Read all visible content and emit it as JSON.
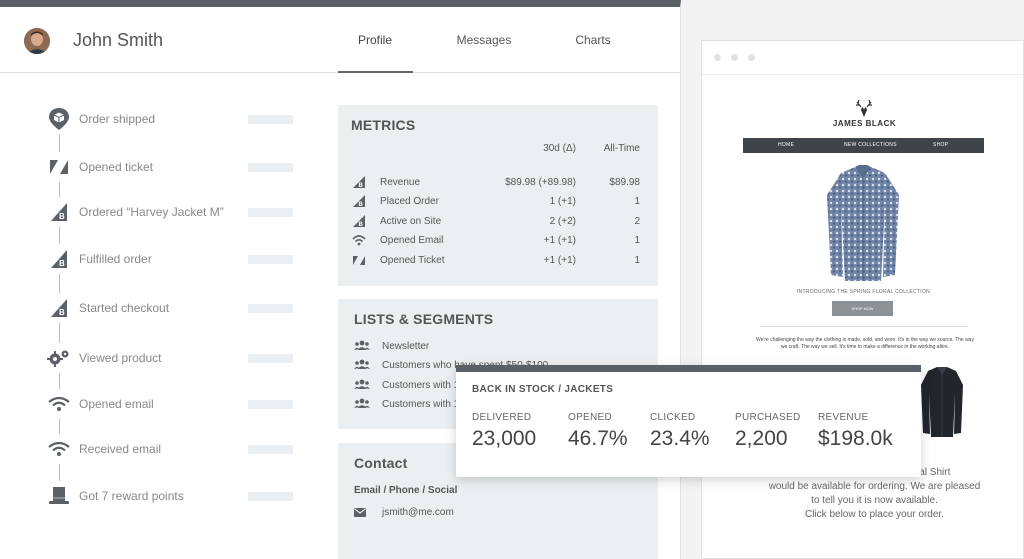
{
  "header": {
    "user_name": "John Smith",
    "tabs": [
      {
        "label": "Profile",
        "active": true
      },
      {
        "label": "Messages",
        "active": false
      },
      {
        "label": "Charts",
        "active": false
      }
    ]
  },
  "timeline": [
    {
      "label": "Order shipped",
      "icon": "location-box-icon"
    },
    {
      "label": "Opened ticket",
      "icon": "zendesk-icon"
    },
    {
      "label": "Ordered “Harvey Jacket M”",
      "icon": "bigcommerce-icon"
    },
    {
      "label": "Fulfilled order",
      "icon": "bigcommerce-icon"
    },
    {
      "label": "Started checkout",
      "icon": "bigcommerce-icon"
    },
    {
      "label": "Viewed product",
      "icon": "gears-icon"
    },
    {
      "label": "Opened email",
      "icon": "wifi-icon"
    },
    {
      "label": "Received email",
      "icon": "wifi-icon"
    },
    {
      "label": "Got 7 reward points",
      "icon": "top-hat-icon"
    }
  ],
  "metrics": {
    "title": "METRICS",
    "col_30d": "30d (Δ)",
    "col_all": "All-Time",
    "rows": [
      {
        "label": "Revenue",
        "v30": "$89.98 (+89.98)",
        "all": "$89.98",
        "icon": "bigcommerce-icon"
      },
      {
        "label": "Placed Order",
        "v30": "1 (+1)",
        "all": "1",
        "icon": "bigcommerce-icon"
      },
      {
        "label": "Active on Site",
        "v30": "2 (+2)",
        "all": "2",
        "icon": "bigcommerce-icon"
      },
      {
        "label": "Opened Email",
        "v30": "+1 (+1)",
        "all": "1",
        "icon": "wifi-icon"
      },
      {
        "label": "Opened Ticket",
        "v30": "+1 (+1)",
        "all": "1",
        "icon": "zendesk-icon"
      }
    ]
  },
  "lists": {
    "title": "LISTS & SEGMENTS",
    "items": [
      "Newsletter",
      "Customers who have spent $50-$100",
      "Customers with 1",
      "Customers with 1"
    ]
  },
  "contact": {
    "title": "Contact",
    "subtitle": "Email / Phone / Social",
    "email": "jsmith@me.com"
  },
  "preview": {
    "brand": "JAMES BLACK",
    "nav": [
      "HOME",
      "NEW COLLECTIONS",
      "SHOP"
    ],
    "intro": "INTRODUCING THE SPRING FLORAL COLLECTION",
    "button": "SHOP NOW",
    "body": "We're challenging the way the clothing is made, sold, and worn. It's in the way we source. The way we craft. The way we sell. It's time to make a difference in the working attire.",
    "para_lines": [
      "Floral Shirt",
      "would be available for ordering. We are pleased",
      "to tell you it is now available.",
      "Click below to place your order."
    ]
  },
  "stats": {
    "title": "BACK IN STOCK / JACKETS",
    "items": [
      {
        "label": "DELIVERED",
        "value": "23,000"
      },
      {
        "label": "OPENED",
        "value": "46.7%"
      },
      {
        "label": "CLICKED",
        "value": "23.4%"
      },
      {
        "label": "PURCHASED",
        "value": "2,200"
      },
      {
        "label": "REVENUE",
        "value": "$198.0k"
      }
    ]
  },
  "colors": {
    "accent_bar": "#5b6066",
    "card_bg": "#eceff1",
    "navbar": "#3f434a"
  }
}
